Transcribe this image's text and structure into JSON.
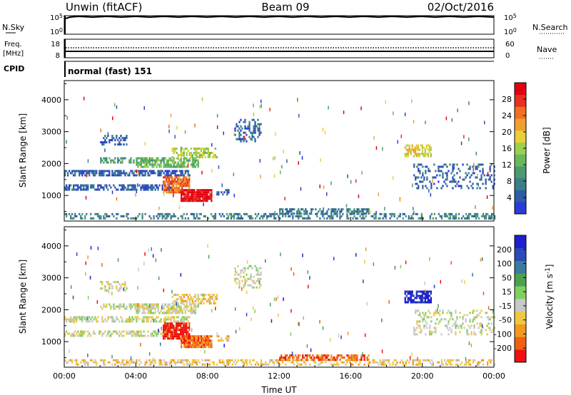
{
  "header": {
    "station": "Unwin (fitACF)",
    "beam": "Beam 09",
    "date": "02/Oct/2016"
  },
  "panels": {
    "nsky": {
      "label": "N.Sky",
      "ticks": [
        "10^5",
        "10^0"
      ]
    },
    "nsearch": {
      "label": "N.Search",
      "ticks": [
        "10^5",
        "10^0"
      ]
    },
    "freq": {
      "label_line1": "Freq.",
      "label_line2": "[MHz]",
      "ticks": [
        "18",
        "8"
      ]
    },
    "nave": {
      "label": "Nave",
      "ticks": [
        "60",
        "0"
      ]
    },
    "cpid": {
      "label": "CPID",
      "value": "normal (fast) 151"
    }
  },
  "colors": {
    "power": [
      "#2a3cd8",
      "#2e5ca8",
      "#3c7e88",
      "#4c9a70",
      "#6ab85c",
      "#9cd050",
      "#e8d038",
      "#f0a030",
      "#f07020",
      "#e83020",
      "#e00010"
    ],
    "velocity": [
      "#f01010",
      "#f06010",
      "#f09a20",
      "#f0c840",
      "#c8c8c8",
      "#80d060",
      "#4ca050",
      "#3c7aa0",
      "#2a4ab8",
      "#1e1ed0"
    ]
  },
  "chart_data": [
    {
      "type": "heatmap",
      "name": "power",
      "xlabel": "",
      "ylabel": "Slant Range [km]",
      "y_ticks": [
        "1000",
        "2000",
        "3000",
        "4000"
      ],
      "colorbar_label": "Power [dB]",
      "colorbar_ticks": [
        "4",
        "8",
        "12",
        "16",
        "20",
        "24",
        "28"
      ],
      "xlim_hours": [
        0,
        24
      ],
      "ylim_km": [
        200,
        4600
      ],
      "colors": [
        "#2a3cd8",
        "#2e5ca8",
        "#3c7e88",
        "#4c9a70",
        "#6ab85c",
        "#9cd050",
        "#e8d038",
        "#f0a030",
        "#f07020",
        "#e83020",
        "#e00010"
      ],
      "regions": [
        {
          "t0": 0.0,
          "t1": 7.0,
          "r0": 1600,
          "r1": 1800,
          "c": 1,
          "d": 0.7
        },
        {
          "t0": 0.0,
          "t1": 6.0,
          "r0": 1200,
          "r1": 1350,
          "c": 1,
          "d": 0.6
        },
        {
          "t0": 2.0,
          "t1": 5.0,
          "r0": 2000,
          "r1": 2200,
          "c": 3,
          "d": 0.5
        },
        {
          "t0": 4.0,
          "t1": 7.5,
          "r0": 1900,
          "r1": 2200,
          "c": 4,
          "d": 0.7
        },
        {
          "t0": 6.0,
          "t1": 8.5,
          "r0": 2200,
          "r1": 2500,
          "c": 5,
          "d": 0.6
        },
        {
          "t0": 5.5,
          "t1": 7.0,
          "r0": 1100,
          "r1": 1600,
          "c": 8,
          "d": 0.8
        },
        {
          "t0": 6.5,
          "t1": 8.2,
          "r0": 850,
          "r1": 1200,
          "c": 10,
          "d": 0.9
        },
        {
          "t0": 2.0,
          "t1": 3.5,
          "r0": 2600,
          "r1": 2900,
          "c": 1,
          "d": 0.4
        },
        {
          "t0": 9.5,
          "t1": 11.0,
          "r0": 2700,
          "r1": 3400,
          "c": 1,
          "d": 0.4
        },
        {
          "t0": 0.0,
          "t1": 24.0,
          "r0": 250,
          "r1": 450,
          "c": 2,
          "d": 0.4
        },
        {
          "t0": 12.0,
          "t1": 17.0,
          "r0": 450,
          "r1": 600,
          "c": 2,
          "d": 0.6
        },
        {
          "t0": 19.0,
          "t1": 20.5,
          "r0": 2200,
          "r1": 2600,
          "c": 6,
          "d": 0.6
        },
        {
          "t0": 19.5,
          "t1": 24.0,
          "r0": 1200,
          "r1": 2000,
          "c": 1,
          "d": 0.25
        },
        {
          "t0": 8.5,
          "t1": 9.2,
          "r0": 1000,
          "r1": 1200,
          "c": 1,
          "d": 0.5
        }
      ]
    },
    {
      "type": "heatmap",
      "name": "velocity",
      "xlabel": "Time UT",
      "ylabel": "Slant Range [km]",
      "x_ticks": [
        "00:00",
        "04:00",
        "08:00",
        "12:00",
        "16:00",
        "20:00",
        "00:00"
      ],
      "y_ticks": [
        "1000",
        "2000",
        "3000",
        "4000"
      ],
      "colorbar_label": "Velocity [m s^-1]",
      "colorbar_ticks": [
        "-200",
        "-100",
        "-50",
        "-15",
        "15",
        "50",
        "100",
        "200"
      ],
      "xlim_hours": [
        0,
        24
      ],
      "ylim_km": [
        200,
        4600
      ],
      "colors": [
        "#f01010",
        "#f06010",
        "#f09a20",
        "#f0c840",
        "#c8c8c8",
        "#80d060",
        "#4ca050",
        "#3c7aa0",
        "#2a4ab8",
        "#1e1ed0"
      ],
      "regions": [
        {
          "t0": 0.0,
          "t1": 7.0,
          "r0": 1600,
          "r1": 1800,
          "c": 4,
          "d": 0.6
        },
        {
          "t0": 0.0,
          "t1": 6.0,
          "r0": 1200,
          "r1": 1350,
          "c": 4,
          "d": 0.5
        },
        {
          "t0": 2.0,
          "t1": 5.0,
          "r0": 2000,
          "r1": 2200,
          "c": 4,
          "d": 0.5
        },
        {
          "t0": 4.0,
          "t1": 7.5,
          "r0": 1900,
          "r1": 2200,
          "c": 4,
          "d": 0.6
        },
        {
          "t0": 6.0,
          "t1": 8.5,
          "r0": 2200,
          "r1": 2500,
          "c": 3,
          "d": 0.5
        },
        {
          "t0": 5.5,
          "t1": 7.0,
          "r0": 1100,
          "r1": 1600,
          "c": 0,
          "d": 0.85
        },
        {
          "t0": 6.5,
          "t1": 8.2,
          "r0": 850,
          "r1": 1200,
          "c": 1,
          "d": 0.9
        },
        {
          "t0": 2.0,
          "t1": 3.5,
          "r0": 2600,
          "r1": 2900,
          "c": 4,
          "d": 0.4
        },
        {
          "t0": 9.5,
          "t1": 11.0,
          "r0": 2700,
          "r1": 3400,
          "c": 4,
          "d": 0.4
        },
        {
          "t0": 0.0,
          "t1": 24.0,
          "r0": 250,
          "r1": 450,
          "c": 3,
          "d": 0.45
        },
        {
          "t0": 12.0,
          "t1": 17.0,
          "r0": 450,
          "r1": 600,
          "c": 1,
          "d": 0.6
        },
        {
          "t0": 19.0,
          "t1": 20.5,
          "r0": 2200,
          "r1": 2600,
          "c": 9,
          "d": 0.75
        },
        {
          "t0": 19.5,
          "t1": 24.0,
          "r0": 1200,
          "r1": 2000,
          "c": 4,
          "d": 0.25
        },
        {
          "t0": 8.5,
          "t1": 9.2,
          "r0": 1000,
          "r1": 1200,
          "c": 3,
          "d": 0.5
        }
      ]
    }
  ]
}
